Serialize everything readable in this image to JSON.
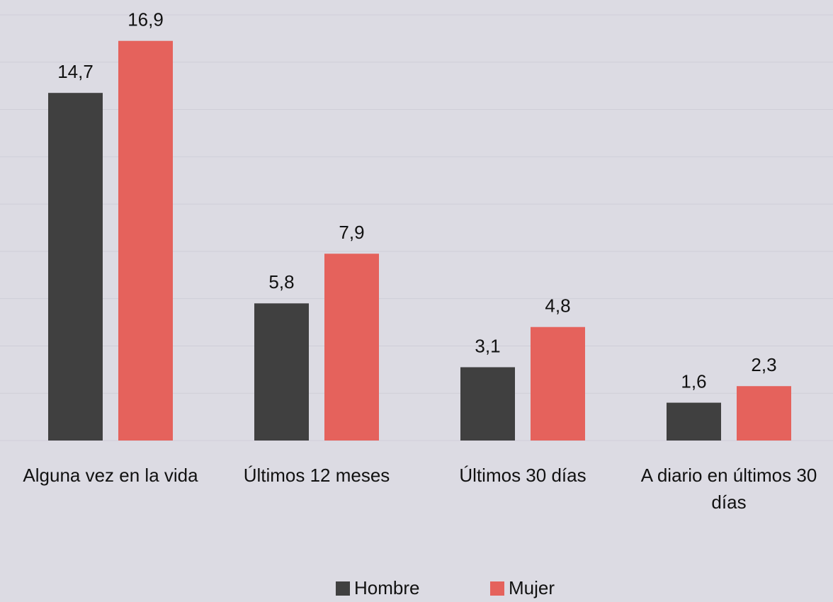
{
  "chart_data": {
    "type": "bar",
    "categories": [
      "Alguna vez en la vida",
      "Últimos 12 meses",
      "Últimos 30 días",
      "A diario en últimos 30 días"
    ],
    "series": [
      {
        "name": "Hombre",
        "color": "#404040",
        "values": [
          14.7,
          5.8,
          3.1,
          1.6
        ],
        "value_labels": [
          "14,7",
          "5,8",
          "3,1",
          "1,6"
        ]
      },
      {
        "name": "Mujer",
        "color": "#e5625c",
        "values": [
          16.9,
          7.9,
          4.8,
          2.3
        ],
        "value_labels": [
          "16,9",
          "7,9",
          "4,8",
          "2,3"
        ]
      }
    ],
    "ylim": [
      0,
      18
    ],
    "yticks": [
      0,
      2,
      4,
      6,
      8,
      10,
      12,
      14,
      16,
      18
    ],
    "grid": true
  }
}
